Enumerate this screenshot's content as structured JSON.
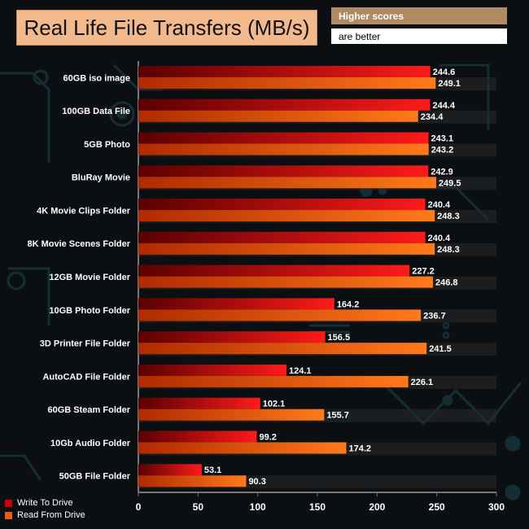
{
  "chart_data": {
    "type": "bar",
    "orientation": "horizontal",
    "title": "Real Life File Transfers (MB/s)",
    "note": [
      "Higher scores",
      "are better"
    ],
    "categories": [
      "60GB iso image",
      "100GB Data File",
      "5GB Photo",
      "BluRay Movie",
      "4K Movie Clips Folder",
      "8K Movie Scenes Folder",
      "12GB Movie Folder",
      "10GB Photo Folder",
      "3D Printer File Folder",
      "AutoCAD File Folder",
      "60GB Steam Folder",
      "10Gb Audio Folder",
      "50GB File Folder"
    ],
    "series": [
      {
        "name": "Write To  Drive",
        "color": "#cc0000",
        "values": [
          244.6,
          244.4,
          243.1,
          242.9,
          240.4,
          240.4,
          227.2,
          164.2,
          156.5,
          124.1,
          102.1,
          99.2,
          53.1
        ]
      },
      {
        "name": "Read From  Drive",
        "color": "#f05a10",
        "values": [
          249.1,
          234.4,
          243.2,
          249.5,
          248.3,
          248.3,
          246.8,
          236.7,
          241.5,
          226.1,
          155.7,
          174.2,
          90.3
        ]
      }
    ],
    "xlim": [
      0,
      300
    ],
    "xticks": [
      "0",
      "50",
      "100",
      "150",
      "200",
      "250",
      "300"
    ],
    "legend_position": "bottom-left"
  }
}
